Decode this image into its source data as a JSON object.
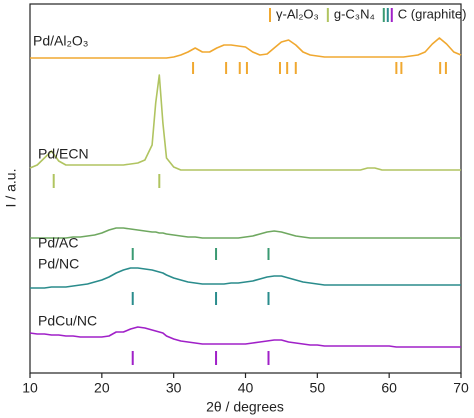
{
  "chart_data": {
    "type": "line",
    "xlabel": "2θ / degrees",
    "ylabel": "I / a.u.",
    "xlim": [
      10,
      70
    ],
    "xticks": [
      10,
      20,
      30,
      40,
      50,
      60,
      70
    ],
    "ylim": [
      0,
      369
    ],
    "x": [
      10,
      11,
      12,
      13,
      14,
      15,
      16,
      17,
      18,
      19,
      20,
      21,
      22,
      23,
      24,
      25,
      26,
      27,
      27.5,
      28,
      28.5,
      29,
      30,
      31,
      32,
      33,
      34,
      35,
      36,
      37,
      38,
      39,
      40,
      41,
      42,
      43,
      44,
      45,
      46,
      47,
      48,
      49,
      50,
      51,
      52,
      53,
      54,
      55,
      56,
      57,
      58,
      59,
      60,
      61,
      62,
      63,
      64,
      65,
      66,
      67,
      68,
      69,
      70
    ],
    "series": [
      {
        "name": "Pd/Al₂O₃",
        "color": "#f0a830",
        "values": [
          315,
          315,
          315,
          315,
          315,
          315,
          315,
          315,
          315,
          315,
          315,
          315,
          315,
          315,
          315,
          315,
          315,
          315,
          315,
          315,
          315,
          315,
          316,
          318,
          321,
          325,
          321,
          321,
          325,
          328,
          328,
          327,
          326,
          321,
          318,
          319,
          325,
          331,
          333,
          328,
          321,
          318,
          317,
          316,
          316,
          316,
          316,
          316,
          316,
          316,
          316,
          316,
          316,
          316,
          316,
          317,
          318,
          321,
          329,
          335,
          329,
          321,
          318
        ]
      },
      {
        "name": "Pd/ECN",
        "color": "#b0c460",
        "values": [
          205,
          208,
          215,
          222,
          212,
          208,
          208,
          208,
          208,
          208,
          208,
          208,
          208,
          208,
          209,
          210,
          213,
          228,
          270,
          298,
          250,
          215,
          206,
          203,
          203,
          203,
          203,
          203,
          203,
          203,
          203,
          203,
          203,
          203,
          203,
          203,
          203,
          203,
          203,
          203,
          203,
          203,
          203,
          203,
          203,
          203,
          203,
          203,
          203,
          205,
          205,
          203,
          203,
          203,
          203,
          203,
          203,
          203,
          203,
          203,
          203,
          203,
          203
        ]
      },
      {
        "name": "Pd/AC",
        "color": "#6fa860",
        "values": [
          135,
          135,
          135,
          135,
          135,
          135,
          136,
          136,
          137,
          138,
          140,
          143,
          145,
          145,
          144,
          143,
          142,
          141,
          141,
          140,
          140,
          139,
          138,
          137,
          136,
          136,
          135,
          135,
          135,
          135,
          135,
          135,
          136,
          137,
          139,
          141,
          142,
          141,
          139,
          137,
          136,
          135,
          135,
          135,
          135,
          135,
          135,
          135,
          135,
          135,
          135,
          135,
          135,
          135,
          135,
          135,
          135,
          135,
          135,
          135,
          135,
          135,
          135
        ]
      },
      {
        "name": "Pd/NC",
        "color": "#2a8c8c",
        "values": [
          85,
          85,
          85,
          86,
          86,
          86,
          87,
          88,
          89,
          91,
          93,
          96,
          100,
          103,
          105,
          105,
          104,
          103,
          102,
          101,
          100,
          98,
          95,
          93,
          91,
          90,
          89,
          89,
          89,
          89,
          90,
          90,
          91,
          92,
          94,
          96,
          97,
          97,
          95,
          93,
          91,
          90,
          89,
          88,
          88,
          88,
          88,
          88,
          88,
          88,
          88,
          88,
          88,
          88,
          88,
          88,
          88,
          88,
          88,
          88,
          88,
          88,
          88
        ]
      },
      {
        "name": "PdCu/NC",
        "color": "#a020c8",
        "values": [
          40,
          39,
          39,
          38,
          38,
          37,
          37,
          36,
          36,
          36,
          36,
          37,
          41,
          41,
          44,
          46,
          45,
          43,
          42,
          41,
          40,
          37,
          34,
          32,
          31,
          30,
          29,
          29,
          29,
          29,
          29,
          29,
          29,
          30,
          31,
          32,
          33,
          33,
          31,
          30,
          29,
          28,
          28,
          27,
          27,
          27,
          27,
          27,
          27,
          27,
          27,
          27,
          27,
          26,
          26,
          26,
          26,
          26,
          26,
          26,
          26,
          26,
          26
        ]
      }
    ],
    "references": [
      {
        "name": "γ-Al₂O₃",
        "colors": [
          "#f0a830"
        ],
        "positions": [
          32.7,
          37.3,
          39.2,
          40.2,
          44.8,
          45.8,
          47.0,
          61.0,
          61.7,
          67.1,
          67.9
        ]
      },
      {
        "name": "g-C₃N₄",
        "colors": [
          "#b0c460"
        ],
        "positions": [
          13.3,
          28.0
        ]
      },
      {
        "name": "C (graphite)",
        "colors": [
          "#3a9a72",
          "#2a8c8c",
          "#a020c8"
        ],
        "positions": [
          24.3,
          35.9,
          43.2
        ]
      }
    ]
  }
}
